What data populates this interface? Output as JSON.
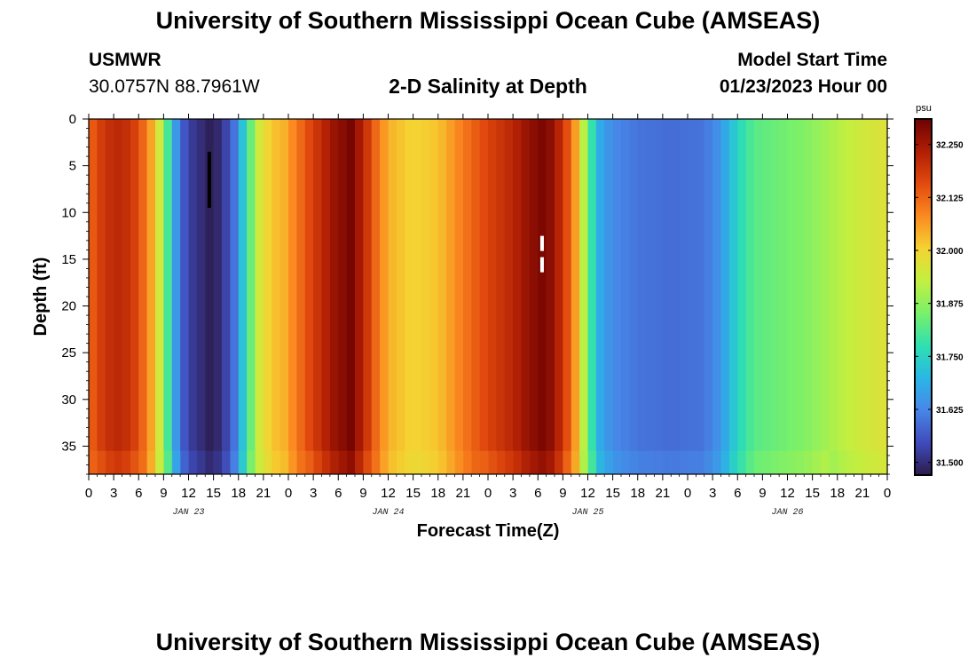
{
  "page": {
    "title": "University of Southern Mississippi Ocean Cube (AMSEAS)",
    "footer_title": "University of Southern Mississippi Ocean Cube (AMSEAS)",
    "station": "USMWR",
    "coordinates": "30.0757N  88.7961W",
    "subtitle": "2-D Salinity at Depth",
    "model_start_label": "Model Start Time",
    "model_start_value": "01/23/2023 Hour 00"
  },
  "chart_data": {
    "type": "heatmap",
    "title": "2-D Salinity at Depth",
    "xlabel": "Forecast Time(Z)",
    "ylabel": "Depth (ft)",
    "x_range_hours": [
      0,
      96
    ],
    "y_range": [
      0,
      38
    ],
    "x_tick_labels": [
      "0",
      "3",
      "6",
      "9",
      "12",
      "15",
      "18",
      "21",
      "0",
      "3",
      "6",
      "9",
      "12",
      "15",
      "18",
      "21",
      "0",
      "3",
      "6",
      "9",
      "12",
      "15",
      "18",
      "21",
      "0",
      "3",
      "6",
      "9",
      "12",
      "15",
      "18",
      "21",
      "0"
    ],
    "date_labels": [
      {
        "hour": 12,
        "label": "JAN 23"
      },
      {
        "hour": 36,
        "label": "JAN 24"
      },
      {
        "hour": 60,
        "label": "JAN 25"
      },
      {
        "hour": 84,
        "label": "JAN 26"
      }
    ],
    "y_ticks": [
      0,
      5,
      10,
      15,
      20,
      25,
      30,
      35
    ],
    "colorbar": {
      "unit": "psu",
      "range": [
        31.47,
        32.31
      ],
      "ticks": [
        "31.500",
        "31.625",
        "31.750",
        "31.875",
        "32.000",
        "32.125",
        "32.250"
      ],
      "colors": [
        "#2c1b4a",
        "#3f4bbd",
        "#4886e8",
        "#29b7e6",
        "#2fe0b0",
        "#79f06a",
        "#c2f040",
        "#f5d332",
        "#fb8a20",
        "#e24a0e",
        "#b01e04",
        "#6e0202"
      ]
    },
    "salinity_profile": [
      {
        "hour": 0,
        "value": 32.12
      },
      {
        "hour": 2,
        "value": 32.2
      },
      {
        "hour": 4,
        "value": 32.22
      },
      {
        "hour": 6,
        "value": 32.16
      },
      {
        "hour": 8,
        "value": 32.02
      },
      {
        "hour": 9,
        "value": 31.88
      },
      {
        "hour": 10,
        "value": 31.72
      },
      {
        "hour": 11,
        "value": 31.58
      },
      {
        "hour": 12.5,
        "value": 31.52
      },
      {
        "hour": 14.5,
        "value": 31.48
      },
      {
        "hour": 16,
        "value": 31.5
      },
      {
        "hour": 17.5,
        "value": 31.6
      },
      {
        "hour": 19,
        "value": 31.78
      },
      {
        "hour": 20.5,
        "value": 31.95
      },
      {
        "hour": 22,
        "value": 32.02
      },
      {
        "hour": 23.5,
        "value": 32.04
      },
      {
        "hour": 25,
        "value": 32.1
      },
      {
        "hour": 27,
        "value": 32.18
      },
      {
        "hour": 29.5,
        "value": 32.26
      },
      {
        "hour": 31.5,
        "value": 32.3
      },
      {
        "hour": 33,
        "value": 32.22
      },
      {
        "hour": 34.5,
        "value": 32.12
      },
      {
        "hour": 36,
        "value": 32.04
      },
      {
        "hour": 39,
        "value": 32.0
      },
      {
        "hour": 42,
        "value": 32.02
      },
      {
        "hour": 45,
        "value": 32.1
      },
      {
        "hour": 48,
        "value": 32.17
      },
      {
        "hour": 51,
        "value": 32.22
      },
      {
        "hour": 53,
        "value": 32.27
      },
      {
        "hour": 55,
        "value": 32.3
      },
      {
        "hour": 57,
        "value": 32.2
      },
      {
        "hour": 58.5,
        "value": 32.06
      },
      {
        "hour": 59.5,
        "value": 31.92
      },
      {
        "hour": 60.5,
        "value": 31.78
      },
      {
        "hour": 61.5,
        "value": 31.68
      },
      {
        "hour": 63,
        "value": 31.63
      },
      {
        "hour": 66,
        "value": 31.6
      },
      {
        "hour": 70,
        "value": 31.59
      },
      {
        "hour": 74,
        "value": 31.6
      },
      {
        "hour": 76,
        "value": 31.65
      },
      {
        "hour": 78,
        "value": 31.75
      },
      {
        "hour": 80,
        "value": 31.82
      },
      {
        "hour": 83,
        "value": 31.84
      },
      {
        "hour": 86,
        "value": 31.86
      },
      {
        "hour": 89,
        "value": 31.9
      },
      {
        "hour": 92,
        "value": 31.94
      },
      {
        "hour": 96,
        "value": 31.97
      }
    ],
    "markers": [
      {
        "hour": 14.5,
        "depth_start": 3.5,
        "depth_end": 9.5,
        "color": "#000000",
        "dashed": false
      },
      {
        "hour": 54.5,
        "depth_start": 12.5,
        "depth_end": 16.5,
        "color": "#ffffff",
        "dashed": true
      }
    ]
  }
}
